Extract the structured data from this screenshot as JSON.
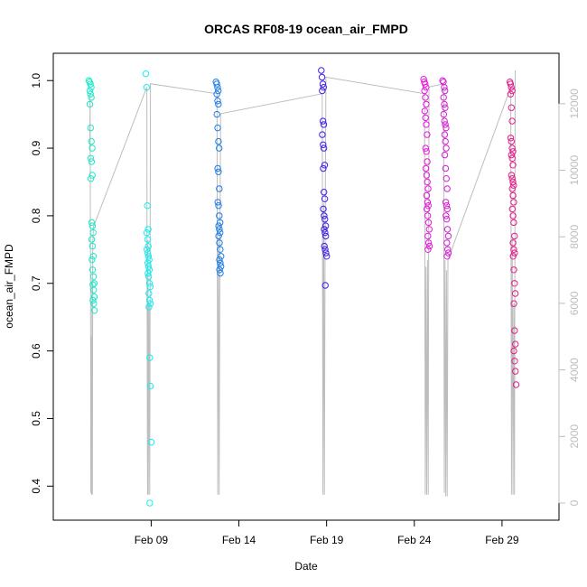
{
  "chart_data": {
    "type": "scatter",
    "title": "ORCAS RF08-19 ocean_air_FMPD",
    "xlabel": "Date",
    "ylabel": "ocean_air_FMPD",
    "xlim": [
      "2016-02-04T12:00",
      "2016-03-02T04:00"
    ],
    "ylim": [
      0.375,
      1.015
    ],
    "y2lim": [
      0,
      13000
    ],
    "x_ticks": [
      {
        "date": "2016-02-09",
        "label": "Feb 09"
      },
      {
        "date": "2016-02-14",
        "label": "Feb 14"
      },
      {
        "date": "2016-02-19",
        "label": "Feb 19"
      },
      {
        "date": "2016-02-24",
        "label": "Feb 24"
      },
      {
        "date": "2016-02-29",
        "label": "Feb 29"
      }
    ],
    "y_ticks": [
      0.4,
      0.5,
      0.6,
      0.7,
      0.8,
      0.9,
      1.0
    ],
    "y_tick_labels": [
      "0.4",
      "0.5",
      "0.6",
      "0.7",
      "0.8",
      "0.9",
      "1.0"
    ],
    "y2_ticks": [
      0,
      2000,
      4000,
      6000,
      8000,
      10000,
      12000
    ],
    "y2_tick_labels": [
      "0",
      "2000",
      "4000",
      "6000",
      "8000",
      "10000",
      "12000"
    ],
    "grid": false,
    "marker": "open-circle",
    "series": [
      {
        "date": "2016-02-05",
        "hour_start": 12,
        "hour_end": 18,
        "color": "#1ee8c8",
        "values": [
          1.0,
          0.998,
          0.995,
          0.99,
          0.985,
          0.98,
          0.975,
          0.965,
          0.93,
          0.91,
          0.9,
          0.885,
          0.88,
          0.86,
          0.855,
          0.79,
          0.785,
          0.775,
          0.765,
          0.755,
          0.74,
          0.735,
          0.72,
          0.71,
          0.7,
          0.698,
          0.69,
          0.68,
          0.675,
          0.67,
          0.66
        ]
      },
      {
        "date": "2016-02-08",
        "hour_start": 18,
        "hour_end": 23,
        "color": "#17eef0",
        "values": [
          1.01,
          0.99,
          0.815,
          0.78,
          0.775,
          0.765,
          0.755,
          0.75,
          0.745,
          0.74,
          0.735,
          0.73,
          0.725,
          0.72,
          0.715,
          0.71,
          0.7,
          0.695,
          0.685,
          0.675,
          0.67,
          0.665,
          0.59,
          0.548,
          0.465,
          0.375
        ]
      },
      {
        "date": "2016-02-12",
        "hour_start": 18,
        "hour_end": 23,
        "color": "#1e7ee6",
        "values": [
          0.998,
          0.995,
          0.99,
          0.985,
          0.98,
          0.97,
          0.965,
          0.95,
          0.93,
          0.91,
          0.9,
          0.87,
          0.865,
          0.84,
          0.82,
          0.815,
          0.8,
          0.79,
          0.785,
          0.78,
          0.775,
          0.77,
          0.76,
          0.75,
          0.74,
          0.735,
          0.73,
          0.725,
          0.72,
          0.715
        ]
      },
      {
        "date": "2016-02-18",
        "hour_start": 18,
        "hour_end": 23,
        "color": "#3f1fe8",
        "values": [
          1.015,
          1.005,
          0.995,
          0.99,
          0.985,
          0.94,
          0.935,
          0.92,
          0.905,
          0.9,
          0.875,
          0.87,
          0.835,
          0.825,
          0.81,
          0.8,
          0.795,
          0.785,
          0.78,
          0.775,
          0.77,
          0.755,
          0.75,
          0.745,
          0.74,
          0.697
        ]
      },
      {
        "date": "2016-02-24",
        "hour_start": 14,
        "hour_end": 20,
        "color": "#e41cd8",
        "values": [
          1.002,
          0.998,
          0.995,
          0.99,
          0.985,
          0.975,
          0.965,
          0.955,
          0.945,
          0.935,
          0.92,
          0.9,
          0.895,
          0.88,
          0.87,
          0.86,
          0.85,
          0.84,
          0.83,
          0.82,
          0.815,
          0.81,
          0.8,
          0.79,
          0.78,
          0.77,
          0.76,
          0.755,
          0.75
        ]
      },
      {
        "date": "2016-02-25",
        "hour_start": 16,
        "hour_end": 22,
        "color": "#d61fd6",
        "values": [
          1.0,
          0.998,
          0.99,
          0.985,
          0.975,
          0.965,
          0.96,
          0.95,
          0.94,
          0.935,
          0.93,
          0.92,
          0.91,
          0.9,
          0.89,
          0.87,
          0.855,
          0.84,
          0.82,
          0.815,
          0.81,
          0.8,
          0.795,
          0.78,
          0.77,
          0.76,
          0.75,
          0.745,
          0.74
        ]
      },
      {
        "date": "2016-02-29",
        "hour_start": 12,
        "hour_end": 18,
        "color": "#e41c8a",
        "values": [
          0.998,
          0.995,
          0.99,
          0.985,
          0.98,
          0.96,
          0.94,
          0.915,
          0.91,
          0.9,
          0.895,
          0.89,
          0.885,
          0.875,
          0.86,
          0.855,
          0.85,
          0.845,
          0.84,
          0.83,
          0.82,
          0.81,
          0.8,
          0.79,
          0.77,
          0.76,
          0.75,
          0.745,
          0.74,
          0.72,
          0.7,
          0.685,
          0.67,
          0.63,
          0.61,
          0.6,
          0.585,
          0.57,
          0.55
        ]
      }
    ],
    "secondary_line": {
      "color": "#bdbdbd",
      "axis": "right",
      "points": [
        [
          "2016-02-05T12:00",
          10600
        ],
        [
          "2016-02-05T12:30",
          12300
        ],
        [
          "2016-02-05T13:00",
          7000
        ],
        [
          "2016-02-05T13:30",
          300
        ],
        [
          "2016-02-05T14:00",
          5000
        ],
        [
          "2016-02-05T14:30",
          250
        ],
        [
          "2016-02-05T15:00",
          6700
        ],
        [
          "2016-02-05T15:30",
          250
        ],
        [
          "2016-02-05T16:00",
          7800
        ],
        [
          "2016-02-05T17:00",
          8300
        ],
        [
          "2016-02-08T18:00",
          12500
        ],
        [
          "2016-02-08T18:30",
          4000
        ],
        [
          "2016-02-08T19:00",
          250
        ],
        [
          "2016-02-08T19:30",
          7900
        ],
        [
          "2016-02-08T20:00",
          250
        ],
        [
          "2016-02-08T21:00",
          6000
        ],
        [
          "2016-02-08T22:00",
          250
        ],
        [
          "2016-02-08T23:00",
          12600
        ],
        [
          "2016-02-12T18:00",
          12300
        ],
        [
          "2016-02-12T19:00",
          250
        ],
        [
          "2016-02-12T20:00",
          8000
        ],
        [
          "2016-02-12T21:00",
          250
        ],
        [
          "2016-02-12T22:00",
          7500
        ],
        [
          "2016-02-12T23:00",
          11700
        ],
        [
          "2016-02-18T18:00",
          12300
        ],
        [
          "2016-02-18T19:00",
          250
        ],
        [
          "2016-02-18T20:00",
          9000
        ],
        [
          "2016-02-18T21:00",
          250
        ],
        [
          "2016-02-18T22:00",
          7800
        ],
        [
          "2016-02-18T23:00",
          12800
        ],
        [
          "2016-02-24T14:00",
          12300
        ],
        [
          "2016-02-24T15:00",
          250
        ],
        [
          "2016-02-24T16:00",
          7100
        ],
        [
          "2016-02-24T17:00",
          250
        ],
        [
          "2016-02-24T18:00",
          7300
        ],
        [
          "2016-02-24T19:00",
          250
        ],
        [
          "2016-02-24T20:00",
          12500
        ],
        [
          "2016-02-25T16:00",
          12600
        ],
        [
          "2016-02-25T17:00",
          300
        ],
        [
          "2016-02-25T18:00",
          7300
        ],
        [
          "2016-02-25T19:00",
          200
        ],
        [
          "2016-02-25T20:00",
          7000
        ],
        [
          "2016-02-25T21:00",
          200
        ],
        [
          "2016-02-25T22:00",
          7300
        ],
        [
          "2016-02-29T12:00",
          12500
        ],
        [
          "2016-02-29T13:00",
          250
        ],
        [
          "2016-02-29T14:00",
          8000
        ],
        [
          "2016-02-29T15:00",
          250
        ],
        [
          "2016-02-29T16:00",
          6000
        ],
        [
          "2016-02-29T17:00",
          250
        ],
        [
          "2016-02-29T18:00",
          13000
        ]
      ]
    }
  }
}
